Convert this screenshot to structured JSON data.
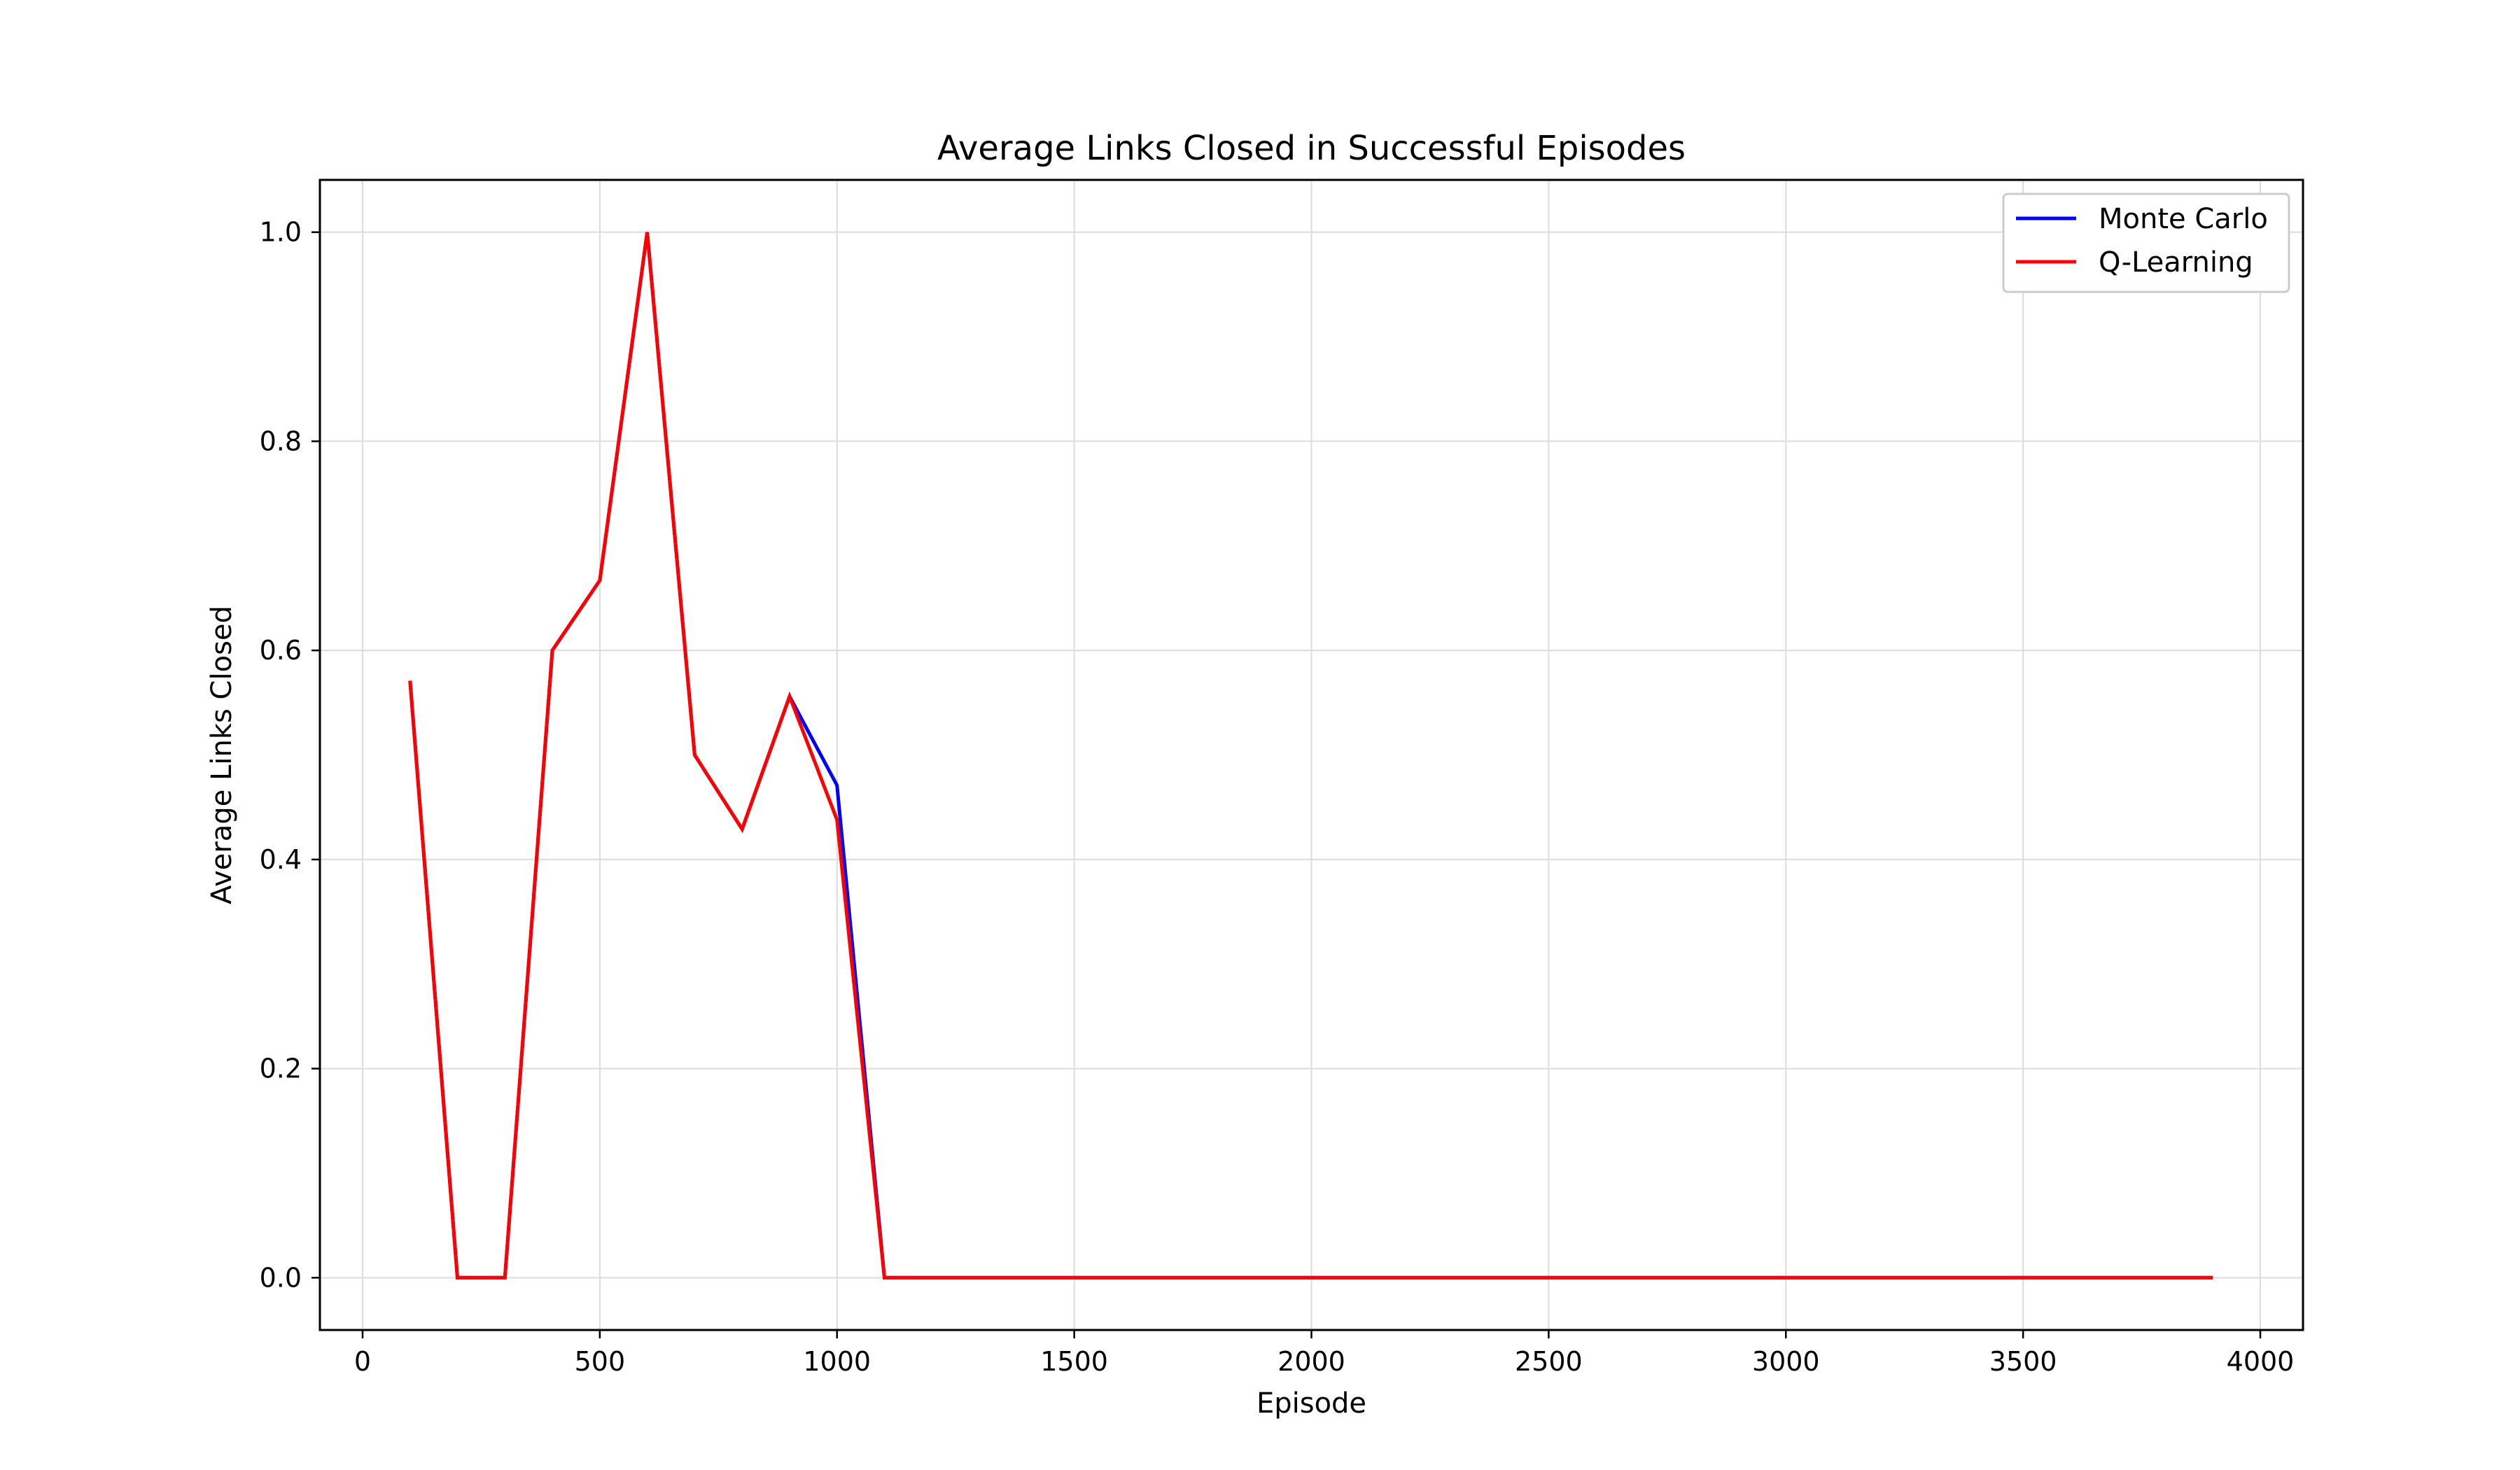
{
  "chart_data": {
    "type": "line",
    "title": "Average Links Closed in Successful Episodes",
    "xlabel": "Episode",
    "ylabel": "Average Links Closed",
    "xlim": [
      -90,
      4090
    ],
    "ylim": [
      -0.05,
      1.05
    ],
    "xticks": [
      0,
      500,
      1000,
      1500,
      2000,
      2500,
      3000,
      3500,
      4000
    ],
    "xtick_labels": [
      "0",
      "500",
      "1000",
      "1500",
      "2000",
      "2500",
      "3000",
      "3500",
      "4000"
    ],
    "yticks": [
      0.0,
      0.2,
      0.4,
      0.6,
      0.8,
      1.0
    ],
    "ytick_labels": [
      "0.0",
      "0.2",
      "0.4",
      "0.6",
      "0.8",
      "1.0"
    ],
    "grid": true,
    "legend_position": "top-right",
    "x": [
      100,
      200,
      300,
      400,
      500,
      600,
      700,
      800,
      900,
      1000,
      1100,
      1200,
      1300,
      1400,
      1500,
      1600,
      1700,
      1800,
      1900,
      2000,
      2100,
      2200,
      2300,
      2400,
      2500,
      2600,
      2700,
      2800,
      2900,
      3000,
      3100,
      3200,
      3300,
      3400,
      3500,
      3600,
      3700,
      3800,
      3900
    ],
    "series": [
      {
        "name": "Monte Carlo",
        "color": "#0000ff",
        "values": [
          0.571,
          0.0,
          0.0,
          0.6,
          0.667,
          1.0,
          0.5,
          0.429,
          0.556,
          0.471,
          0.0,
          0.0,
          0.0,
          0.0,
          0.0,
          0.0,
          0.0,
          0.0,
          0.0,
          0.0,
          0.0,
          0.0,
          0.0,
          0.0,
          0.0,
          0.0,
          0.0,
          0.0,
          0.0,
          0.0,
          0.0,
          0.0,
          0.0,
          0.0,
          0.0,
          0.0,
          0.0,
          0.0,
          0.0
        ]
      },
      {
        "name": "Q-Learning",
        "color": "#ff0000",
        "values": [
          0.571,
          0.0,
          0.0,
          0.6,
          0.667,
          1.0,
          0.5,
          0.429,
          0.556,
          0.438,
          0.0,
          0.0,
          0.0,
          0.0,
          0.0,
          0.0,
          0.0,
          0.0,
          0.0,
          0.0,
          0.0,
          0.0,
          0.0,
          0.0,
          0.0,
          0.0,
          0.0,
          0.0,
          0.0,
          0.0,
          0.0,
          0.0,
          0.0,
          0.0,
          0.0,
          0.0,
          0.0,
          0.0,
          0.0
        ]
      }
    ]
  }
}
